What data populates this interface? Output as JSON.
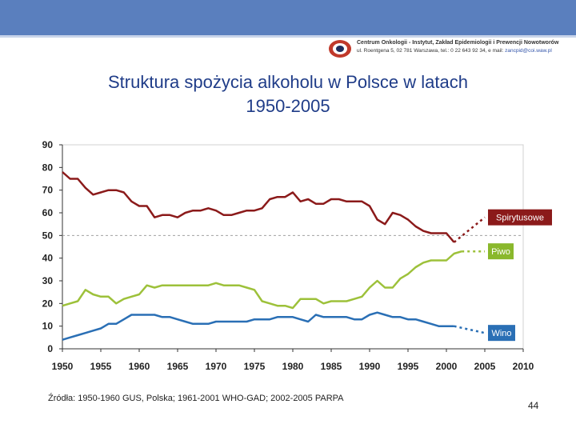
{
  "header": {
    "org_line1": "Centrum Onkologii - Instytut, Zakład Epidemiologii i Prewencji Nowotworów",
    "org_line2": "ul. Roentgena 5, 02 781 Warszawa, tel.: 0 22 643 92 34, e mail:",
    "org_email": "zancpid@coi.waw.pl",
    "bar_color": "#5a7fbe"
  },
  "slide": {
    "title_line1": "Struktura spożycia alkoholu w Polsce w latach",
    "title_line2": "1950-2005",
    "source": "Źródła: 1950-1960 GUS, Polska; 1961-2001 WHO-GAD; 2002-2005 PARPA",
    "page_number": "44"
  },
  "chart_data": {
    "type": "line",
    "title": "Struktura spożycia alkoholu w Polsce w latach 1950-2005",
    "xlabel": "",
    "ylabel": "",
    "xlim": [
      1950,
      2010
    ],
    "ylim": [
      0,
      90
    ],
    "x_ticks": [
      1950,
      1955,
      1960,
      1965,
      1970,
      1975,
      1980,
      1985,
      1990,
      1995,
      2000,
      2005,
      2010
    ],
    "y_ticks": [
      0,
      10,
      20,
      30,
      40,
      50,
      60,
      70,
      80,
      90
    ],
    "grid": false,
    "reference_line": {
      "y": 50,
      "style": "dashed"
    },
    "series": [
      {
        "name": "Spirytusowe",
        "color": "#8b1a1a",
        "label_bg": "#8b1a1a",
        "points": [
          [
            1950,
            78
          ],
          [
            1951,
            75
          ],
          [
            1952,
            75
          ],
          [
            1953,
            71
          ],
          [
            1954,
            68
          ],
          [
            1955,
            69
          ],
          [
            1956,
            70
          ],
          [
            1957,
            70
          ],
          [
            1958,
            69
          ],
          [
            1959,
            65
          ],
          [
            1960,
            63
          ],
          [
            1961,
            63
          ],
          [
            1962,
            58
          ],
          [
            1963,
            59
          ],
          [
            1964,
            59
          ],
          [
            1965,
            58
          ],
          [
            1966,
            60
          ],
          [
            1967,
            61
          ],
          [
            1968,
            61
          ],
          [
            1969,
            62
          ],
          [
            1970,
            61
          ],
          [
            1971,
            59
          ],
          [
            1972,
            59
          ],
          [
            1973,
            60
          ],
          [
            1974,
            61
          ],
          [
            1975,
            61
          ],
          [
            1976,
            62
          ],
          [
            1977,
            66
          ],
          [
            1978,
            67
          ],
          [
            1979,
            67
          ],
          [
            1980,
            69
          ],
          [
            1981,
            65
          ],
          [
            1982,
            66
          ],
          [
            1983,
            64
          ],
          [
            1984,
            64
          ],
          [
            1985,
            66
          ],
          [
            1986,
            66
          ],
          [
            1987,
            65
          ],
          [
            1988,
            65
          ],
          [
            1989,
            65
          ],
          [
            1990,
            63
          ],
          [
            1991,
            57
          ],
          [
            1992,
            55
          ],
          [
            1993,
            60
          ],
          [
            1994,
            59
          ],
          [
            1995,
            57
          ],
          [
            1996,
            54
          ],
          [
            1997,
            52
          ],
          [
            1998,
            51
          ],
          [
            1999,
            51
          ],
          [
            2000,
            51
          ],
          [
            2001,
            47
          ]
        ],
        "projection": [
          [
            2001,
            47
          ],
          [
            2005,
            58
          ]
        ]
      },
      {
        "name": "Piwo",
        "color": "#9dc13a",
        "label_bg": "#8ab82c",
        "points": [
          [
            1950,
            19
          ],
          [
            1951,
            20
          ],
          [
            1952,
            21
          ],
          [
            1953,
            26
          ],
          [
            1954,
            24
          ],
          [
            1955,
            23
          ],
          [
            1956,
            23
          ],
          [
            1957,
            20
          ],
          [
            1958,
            22
          ],
          [
            1959,
            23
          ],
          [
            1960,
            24
          ],
          [
            1961,
            28
          ],
          [
            1962,
            27
          ],
          [
            1963,
            28
          ],
          [
            1964,
            28
          ],
          [
            1965,
            28
          ],
          [
            1966,
            28
          ],
          [
            1967,
            28
          ],
          [
            1968,
            28
          ],
          [
            1969,
            28
          ],
          [
            1970,
            29
          ],
          [
            1971,
            28
          ],
          [
            1972,
            28
          ],
          [
            1973,
            28
          ],
          [
            1974,
            27
          ],
          [
            1975,
            26
          ],
          [
            1976,
            21
          ],
          [
            1977,
            20
          ],
          [
            1978,
            19
          ],
          [
            1979,
            19
          ],
          [
            1980,
            18
          ],
          [
            1981,
            22
          ],
          [
            1982,
            22
          ],
          [
            1983,
            22
          ],
          [
            1984,
            20
          ],
          [
            1985,
            21
          ],
          [
            1986,
            21
          ],
          [
            1987,
            21
          ],
          [
            1988,
            22
          ],
          [
            1989,
            23
          ],
          [
            1990,
            27
          ],
          [
            1991,
            30
          ],
          [
            1992,
            27
          ],
          [
            1993,
            27
          ],
          [
            1994,
            31
          ],
          [
            1995,
            33
          ],
          [
            1996,
            36
          ],
          [
            1997,
            38
          ],
          [
            1998,
            39
          ],
          [
            1999,
            39
          ],
          [
            2000,
            39
          ],
          [
            2001,
            42
          ],
          [
            2002,
            43
          ]
        ],
        "projection": [
          [
            2002,
            43
          ],
          [
            2005,
            43
          ]
        ]
      },
      {
        "name": "Wino",
        "color": "#2a6fb5",
        "label_bg": "#2a6fb5",
        "points": [
          [
            1950,
            4
          ],
          [
            1951,
            5
          ],
          [
            1952,
            6
          ],
          [
            1953,
            7
          ],
          [
            1954,
            8
          ],
          [
            1955,
            9
          ],
          [
            1956,
            11
          ],
          [
            1957,
            11
          ],
          [
            1958,
            13
          ],
          [
            1959,
            15
          ],
          [
            1960,
            15
          ],
          [
            1961,
            15
          ],
          [
            1962,
            15
          ],
          [
            1963,
            14
          ],
          [
            1964,
            14
          ],
          [
            1965,
            13
          ],
          [
            1966,
            12
          ],
          [
            1967,
            11
          ],
          [
            1968,
            11
          ],
          [
            1969,
            11
          ],
          [
            1970,
            12
          ],
          [
            1971,
            12
          ],
          [
            1972,
            12
          ],
          [
            1973,
            12
          ],
          [
            1974,
            12
          ],
          [
            1975,
            13
          ],
          [
            1976,
            13
          ],
          [
            1977,
            13
          ],
          [
            1978,
            14
          ],
          [
            1979,
            14
          ],
          [
            1980,
            14
          ],
          [
            1981,
            13
          ],
          [
            1982,
            12
          ],
          [
            1983,
            15
          ],
          [
            1984,
            14
          ],
          [
            1985,
            14
          ],
          [
            1986,
            14
          ],
          [
            1987,
            14
          ],
          [
            1988,
            13
          ],
          [
            1989,
            13
          ],
          [
            1990,
            15
          ],
          [
            1991,
            16
          ],
          [
            1992,
            15
          ],
          [
            1993,
            14
          ],
          [
            1994,
            14
          ],
          [
            1995,
            13
          ],
          [
            1996,
            13
          ],
          [
            1997,
            12
          ],
          [
            1998,
            11
          ],
          [
            1999,
            10
          ],
          [
            2000,
            10
          ],
          [
            2001,
            10
          ]
        ],
        "projection": [
          [
            2001,
            10
          ],
          [
            2005,
            7
          ]
        ]
      }
    ]
  }
}
